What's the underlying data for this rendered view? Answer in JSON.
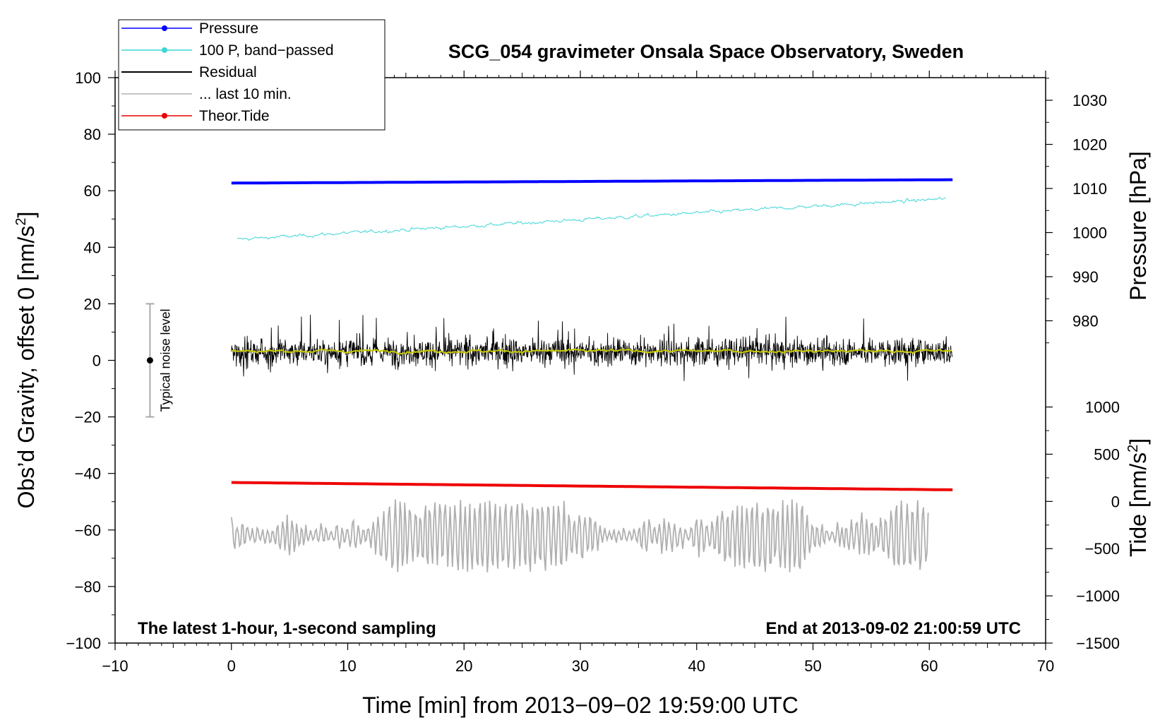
{
  "chart_data": {
    "type": "line",
    "title": "SCG_054 gravimeter Onsala Space Observatory, Sweden",
    "xlabel": "Time [min] from 2013−09−02 19:59:00 UTC",
    "ylabel_main": "Obs’d Gravity, offset 0 [nm/s",
    "ylabel_main_sup": "2",
    "ylabel_main_close": "]",
    "ylabel_pressure": "Pressure [hPa]",
    "ylabel_tide": "Tide [nm/s",
    "ylabel_tide_sup": "2",
    "ylabel_tide_close": "]",
    "xlim": [
      -10,
      70
    ],
    "ylim": [
      -100,
      100
    ],
    "xticks": [
      -10,
      0,
      10,
      20,
      30,
      40,
      50,
      60,
      70
    ],
    "xtick_labels": [
      "−10",
      "0",
      "10",
      "20",
      "30",
      "40",
      "50",
      "60",
      "70"
    ],
    "yticks": [
      -100,
      -80,
      -60,
      -40,
      -20,
      0,
      20,
      40,
      60,
      80,
      100
    ],
    "ytick_labels": [
      "−100",
      "−80",
      "−60",
      "−40",
      "−20",
      "0",
      "20",
      "40",
      "60",
      "80",
      "100"
    ],
    "pressure_axis": {
      "ticks": [
        980,
        990,
        1000,
        1010,
        1020,
        1030
      ],
      "tick_labels": [
        "980",
        "990",
        "1000",
        "1010",
        "1020",
        "1030"
      ],
      "main_value_at": [
        [
          980,
          14
        ],
        [
          1030,
          92
        ]
      ]
    },
    "tide_axis": {
      "ticks": [
        -1500,
        -1000,
        -500,
        0,
        500,
        1000
      ],
      "tick_labels": [
        "−1500",
        "−1000",
        "−500",
        "0",
        "500",
        "1000"
      ],
      "main_value_at": [
        [
          -1500,
          -100
        ],
        [
          1000,
          -16.5
        ]
      ]
    },
    "annotation_left": "The latest 1-hour, 1-second sampling",
    "annotation_right": "End at 2013-09-02 21:00:59 UTC",
    "noise_bar": {
      "label": "Typical noise level",
      "x": -7,
      "y_center": 0,
      "y_low": -20,
      "y_high": 20
    },
    "legend": [
      {
        "label": "Pressure",
        "color": "#0000ff",
        "marker": true
      },
      {
        "label": "100 P, band−passed",
        "color": "#3fd6d6",
        "marker": true
      },
      {
        "label": "Residual",
        "color": "#000000",
        "marker": false
      },
      {
        "label": "... last 10 min.",
        "color": "#b0b0b0",
        "marker": false
      },
      {
        "label": "Theor.Tide",
        "color": "#ee0000",
        "marker": true
      }
    ],
    "series": [
      {
        "name": "Pressure",
        "color": "#0000ff",
        "x_range": [
          0,
          62
        ],
        "y_start": 62.7,
        "y_end": 63.9
      },
      {
        "name": "100 P, band-passed",
        "color": "#3fd6d6",
        "x_range": [
          0.5,
          61.5
        ],
        "y_start": 42.8,
        "y_end": 57.2,
        "noise": 0.6
      },
      {
        "name": "Residual",
        "color": "#000000",
        "x_range": [
          0,
          62
        ],
        "y_center": 3,
        "y_min": -14,
        "y_max": 20
      },
      {
        "name": "Residual smoothed",
        "color": "#c8c800",
        "x_range": [
          0,
          62
        ],
        "y_center": 3.3
      },
      {
        "name": "Theor.Tide",
        "color": "#ee0000",
        "x_range": [
          0,
          62
        ],
        "y_start": -43.2,
        "y_end": -45.8
      },
      {
        "name": "... last 10 min.",
        "color": "#b0b0b0",
        "x_range": [
          0,
          60
        ],
        "y_center": -62,
        "y_min": -76,
        "y_max": -48
      }
    ]
  },
  "colors": {
    "pressure": "#0000ff",
    "bandpassed": "#3fd6d6",
    "residual": "#000000",
    "smoothed": "#c8c800",
    "last10": "#b0b0b0",
    "tide": "#ee0000"
  }
}
